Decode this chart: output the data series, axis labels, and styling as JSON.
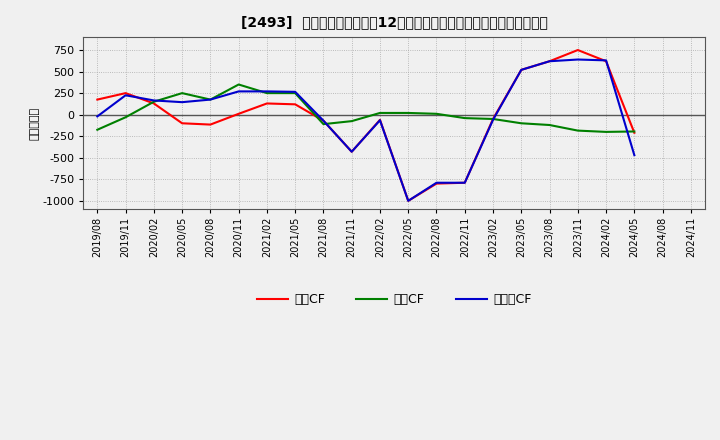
{
  "title": "[2493]  キャッシュフローの12か月移動合計の対前年同期増減額の推移",
  "ylabel": "（百万円）",
  "background_color": "#f0f0f0",
  "plot_bg_color": "#f0f0f0",
  "grid_color": "#aaaaaa",
  "x_labels": [
    "2019/08",
    "2019/11",
    "2020/02",
    "2020/05",
    "2020/08",
    "2020/11",
    "2021/02",
    "2021/05",
    "2021/08",
    "2021/11",
    "2022/02",
    "2022/05",
    "2022/08",
    "2022/11",
    "2023/02",
    "2023/05",
    "2023/08",
    "2023/11",
    "2024/02",
    "2024/05",
    "2024/08",
    "2024/11"
  ],
  "operating_cf": [
    175,
    250,
    130,
    -100,
    -115,
    10,
    130,
    120,
    -70,
    -430,
    -60,
    -1000,
    -800,
    -790,
    -50,
    520,
    620,
    750,
    620,
    -210,
    null,
    null
  ],
  "investing_cf": [
    -175,
    -30,
    150,
    250,
    175,
    350,
    250,
    250,
    -110,
    -75,
    20,
    20,
    10,
    -40,
    -50,
    -100,
    -120,
    -185,
    -200,
    -195,
    null,
    null
  ],
  "free_cf": [
    -20,
    225,
    165,
    145,
    175,
    270,
    270,
    265,
    -70,
    -430,
    -65,
    -1000,
    -790,
    -790,
    -60,
    520,
    620,
    640,
    630,
    -470,
    null,
    null
  ],
  "operating_color": "#ff0000",
  "investing_color": "#008000",
  "free_color": "#0000cd",
  "ylim": [
    -1100,
    900
  ],
  "yticks": [
    -1000,
    -750,
    -500,
    -250,
    0,
    250,
    500,
    750
  ],
  "legend_labels": [
    "営業CF",
    "投資CF",
    "フリーCF"
  ]
}
